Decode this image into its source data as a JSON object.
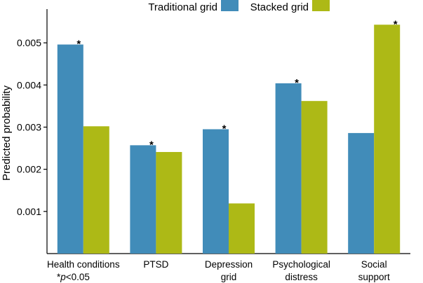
{
  "chart_data": {
    "type": "bar",
    "title": "",
    "xlabel": "",
    "ylabel": "Predicted probability",
    "ylim": [
      0,
      0.0058
    ],
    "yticks": [
      "0.001",
      "0.002",
      "0.003",
      "0.004",
      "0.005"
    ],
    "ytick_values": [
      0.001,
      0.002,
      0.003,
      0.004,
      0.005
    ],
    "grid": false,
    "legend_position": "top",
    "categories": [
      [
        "Health conditions"
      ],
      [
        "PTSD"
      ],
      [
        "Depression",
        "grid"
      ],
      [
        "Psychological",
        "distress"
      ],
      [
        "Social",
        "support"
      ]
    ],
    "series": [
      {
        "name": "Traditional grid",
        "color": "#418cb9",
        "values": [
          0.00496,
          0.00257,
          0.00295,
          0.00404,
          0.00286
        ]
      },
      {
        "name": "Stacked grid",
        "color": "#adb916",
        "values": [
          0.00302,
          0.00241,
          0.00119,
          0.00362,
          0.00543
        ]
      }
    ],
    "annotations": [
      {
        "category_index": 0,
        "series_index": 0,
        "text": "*"
      },
      {
        "category_index": 1,
        "series_index": 0,
        "text": "*"
      },
      {
        "category_index": 2,
        "series_index": 0,
        "text": "*"
      },
      {
        "category_index": 3,
        "series_index": 0,
        "text": "*"
      },
      {
        "category_index": 4,
        "series_index": 1,
        "text": "*"
      }
    ],
    "note": {
      "prefix": "*",
      "italic": "p",
      "suffix": "<0.05"
    }
  }
}
